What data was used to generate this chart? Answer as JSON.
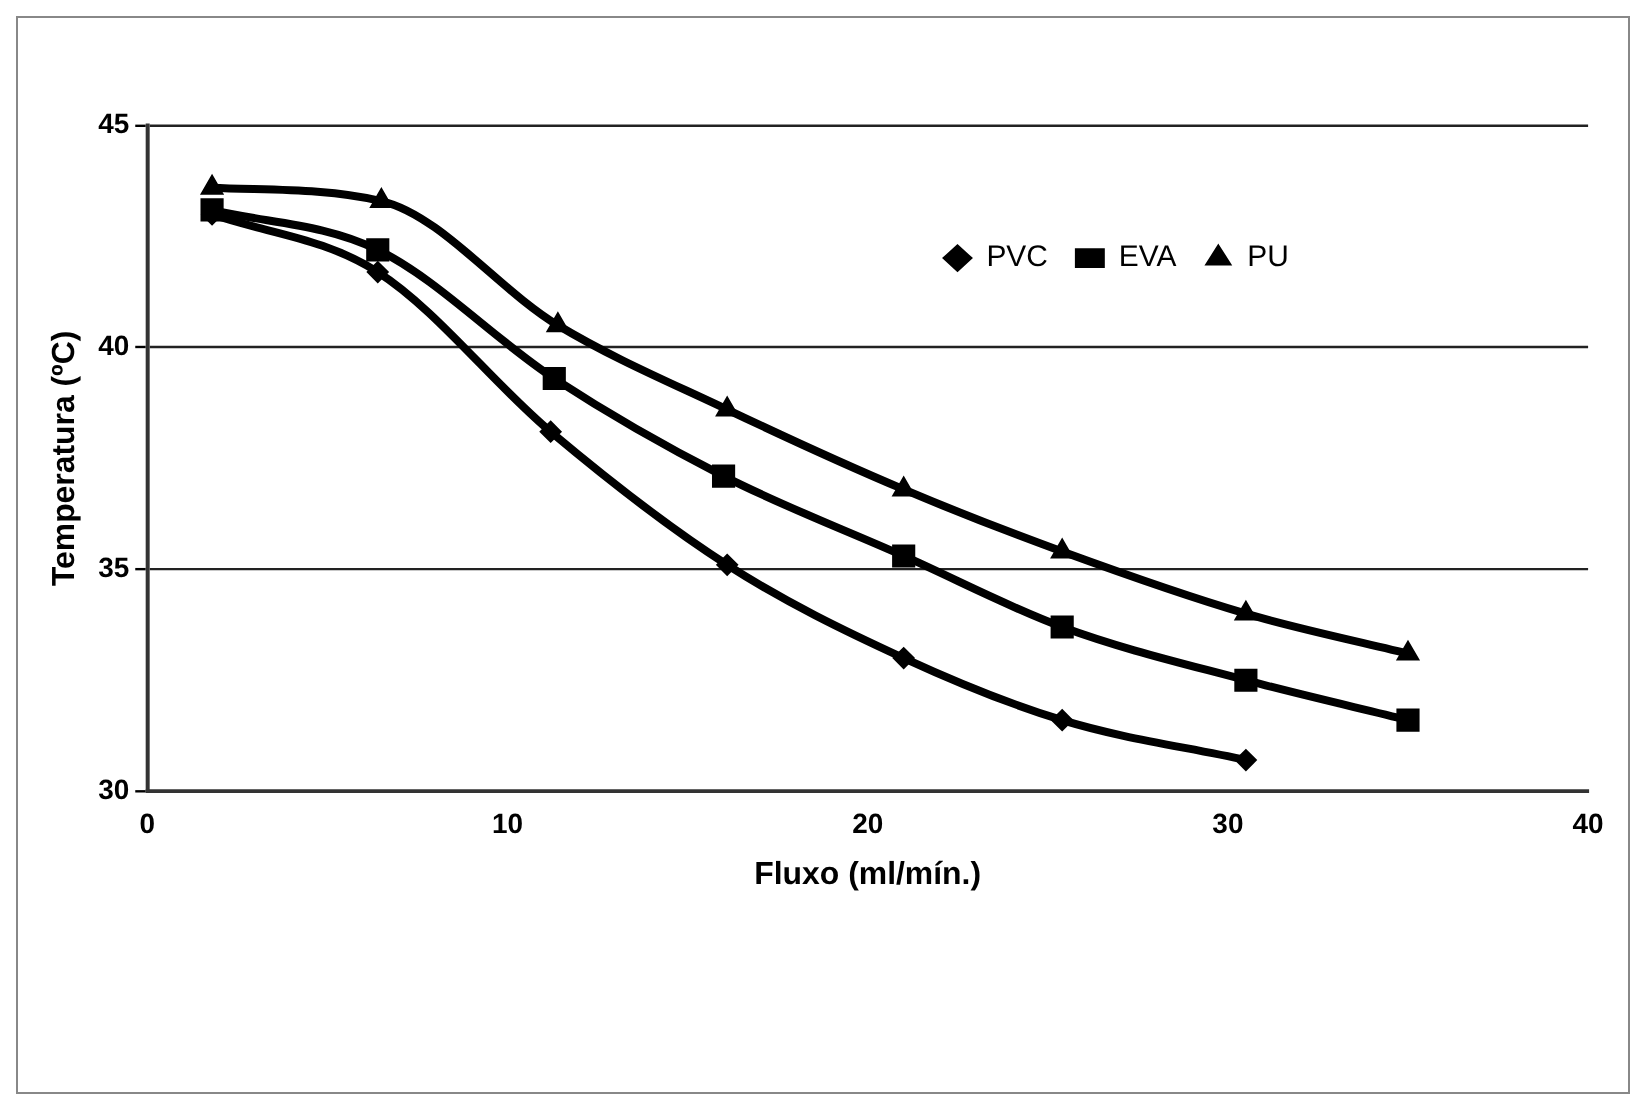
{
  "chart_data": {
    "type": "line",
    "xlabel": "Fluxo (ml/mín.)",
    "ylabel": "Temperatura (ºC)",
    "xlim": [
      0,
      40
    ],
    "xticks": [
      0,
      10,
      20,
      30,
      40
    ],
    "ylim": [
      30,
      45
    ],
    "yticks": [
      30,
      35,
      40,
      45
    ],
    "grid": "y",
    "legend": "top right",
    "line_style": "solid",
    "series": [
      {
        "name": "PVC",
        "color": "#000000",
        "marker": "diamond",
        "x": [
          1.8,
          6.4,
          11.2,
          16.1,
          21.0,
          25.4,
          30.5
        ],
        "values": [
          43.0,
          41.7,
          38.1,
          35.1,
          33.0,
          31.6,
          30.7
        ]
      },
      {
        "name": "EVA",
        "color": "#000000",
        "marker": "square",
        "x": [
          1.8,
          6.4,
          11.3,
          16.0,
          21.0,
          25.4,
          30.5,
          35.0
        ],
        "values": [
          43.1,
          42.2,
          39.3,
          37.1,
          35.3,
          33.7,
          32.5,
          31.6
        ]
      },
      {
        "name": "PU",
        "color": "#000000",
        "marker": "triangle",
        "x": [
          1.8,
          6.5,
          11.4,
          16.1,
          21.0,
          25.4,
          30.5,
          35.0
        ],
        "values": [
          43.6,
          43.3,
          40.5,
          38.6,
          36.8,
          35.4,
          34.0,
          33.1
        ]
      }
    ]
  }
}
